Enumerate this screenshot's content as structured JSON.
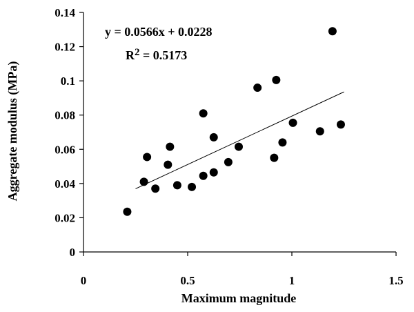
{
  "chart_data": {
    "type": "scatter",
    "title": "",
    "xlabel": "Maximum magnitude",
    "ylabel": "Aggregate modulus (MPa)",
    "xlim": [
      0,
      1.5
    ],
    "ylim": [
      0,
      0.14
    ],
    "xticks": [
      0,
      0.5,
      1,
      1.5
    ],
    "xtick_labels": [
      "0",
      "0.5",
      "1",
      "1.5"
    ],
    "yticks": [
      0,
      0.02,
      0.04,
      0.06,
      0.08,
      0.1,
      0.12,
      0.14
    ],
    "ytick_labels": [
      "0",
      "0.02",
      "0.04",
      "0.06",
      "0.08",
      "0.1",
      "0.12",
      "0.14"
    ],
    "grid": false,
    "legend": "none",
    "marker_color": "#000000",
    "points": [
      {
        "x": 0.21,
        "y": 0.0235
      },
      {
        "x": 0.29,
        "y": 0.041
      },
      {
        "x": 0.305,
        "y": 0.0555
      },
      {
        "x": 0.345,
        "y": 0.037
      },
      {
        "x": 0.405,
        "y": 0.051
      },
      {
        "x": 0.415,
        "y": 0.0615
      },
      {
        "x": 0.45,
        "y": 0.039
      },
      {
        "x": 0.52,
        "y": 0.038
      },
      {
        "x": 0.575,
        "y": 0.0445
      },
      {
        "x": 0.575,
        "y": 0.081
      },
      {
        "x": 0.625,
        "y": 0.0465
      },
      {
        "x": 0.625,
        "y": 0.067
      },
      {
        "x": 0.695,
        "y": 0.0525
      },
      {
        "x": 0.745,
        "y": 0.0615
      },
      {
        "x": 0.835,
        "y": 0.096
      },
      {
        "x": 0.915,
        "y": 0.055
      },
      {
        "x": 0.925,
        "y": 0.1005
      },
      {
        "x": 0.955,
        "y": 0.064
      },
      {
        "x": 1.005,
        "y": 0.0755
      },
      {
        "x": 1.135,
        "y": 0.0705
      },
      {
        "x": 1.195,
        "y": 0.129
      },
      {
        "x": 1.235,
        "y": 0.0745
      }
    ],
    "trendline": {
      "slope": 0.0566,
      "intercept": 0.0228,
      "x_start": 0.25,
      "x_end": 1.25,
      "equation_text": "y = 0.0566x + 0.0228",
      "r2_prefix": "R",
      "r2_sup": "2",
      "r2_value": " = 0.5173"
    }
  }
}
